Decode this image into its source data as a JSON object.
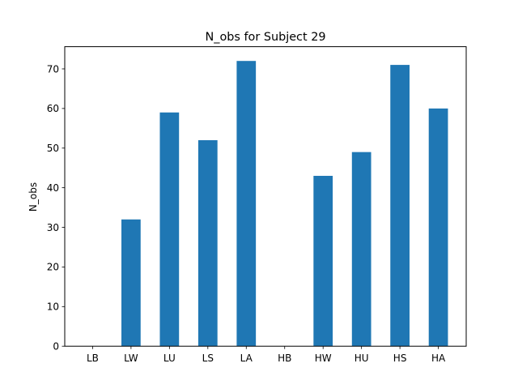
{
  "chart_data": {
    "type": "bar",
    "title": "N_obs for Subject 29",
    "xlabel": "",
    "ylabel": "N_obs",
    "categories": [
      "LB",
      "LW",
      "LU",
      "LS",
      "LA",
      "HB",
      "HW",
      "HU",
      "HS",
      "HA"
    ],
    "values": [
      0,
      32,
      59,
      52,
      72,
      0,
      43,
      49,
      71,
      60
    ],
    "ylim": [
      0,
      75.6
    ],
    "yticks": [
      0,
      10,
      20,
      30,
      40,
      50,
      60,
      70
    ],
    "grid": false,
    "bar_color": "#1f77b4"
  }
}
